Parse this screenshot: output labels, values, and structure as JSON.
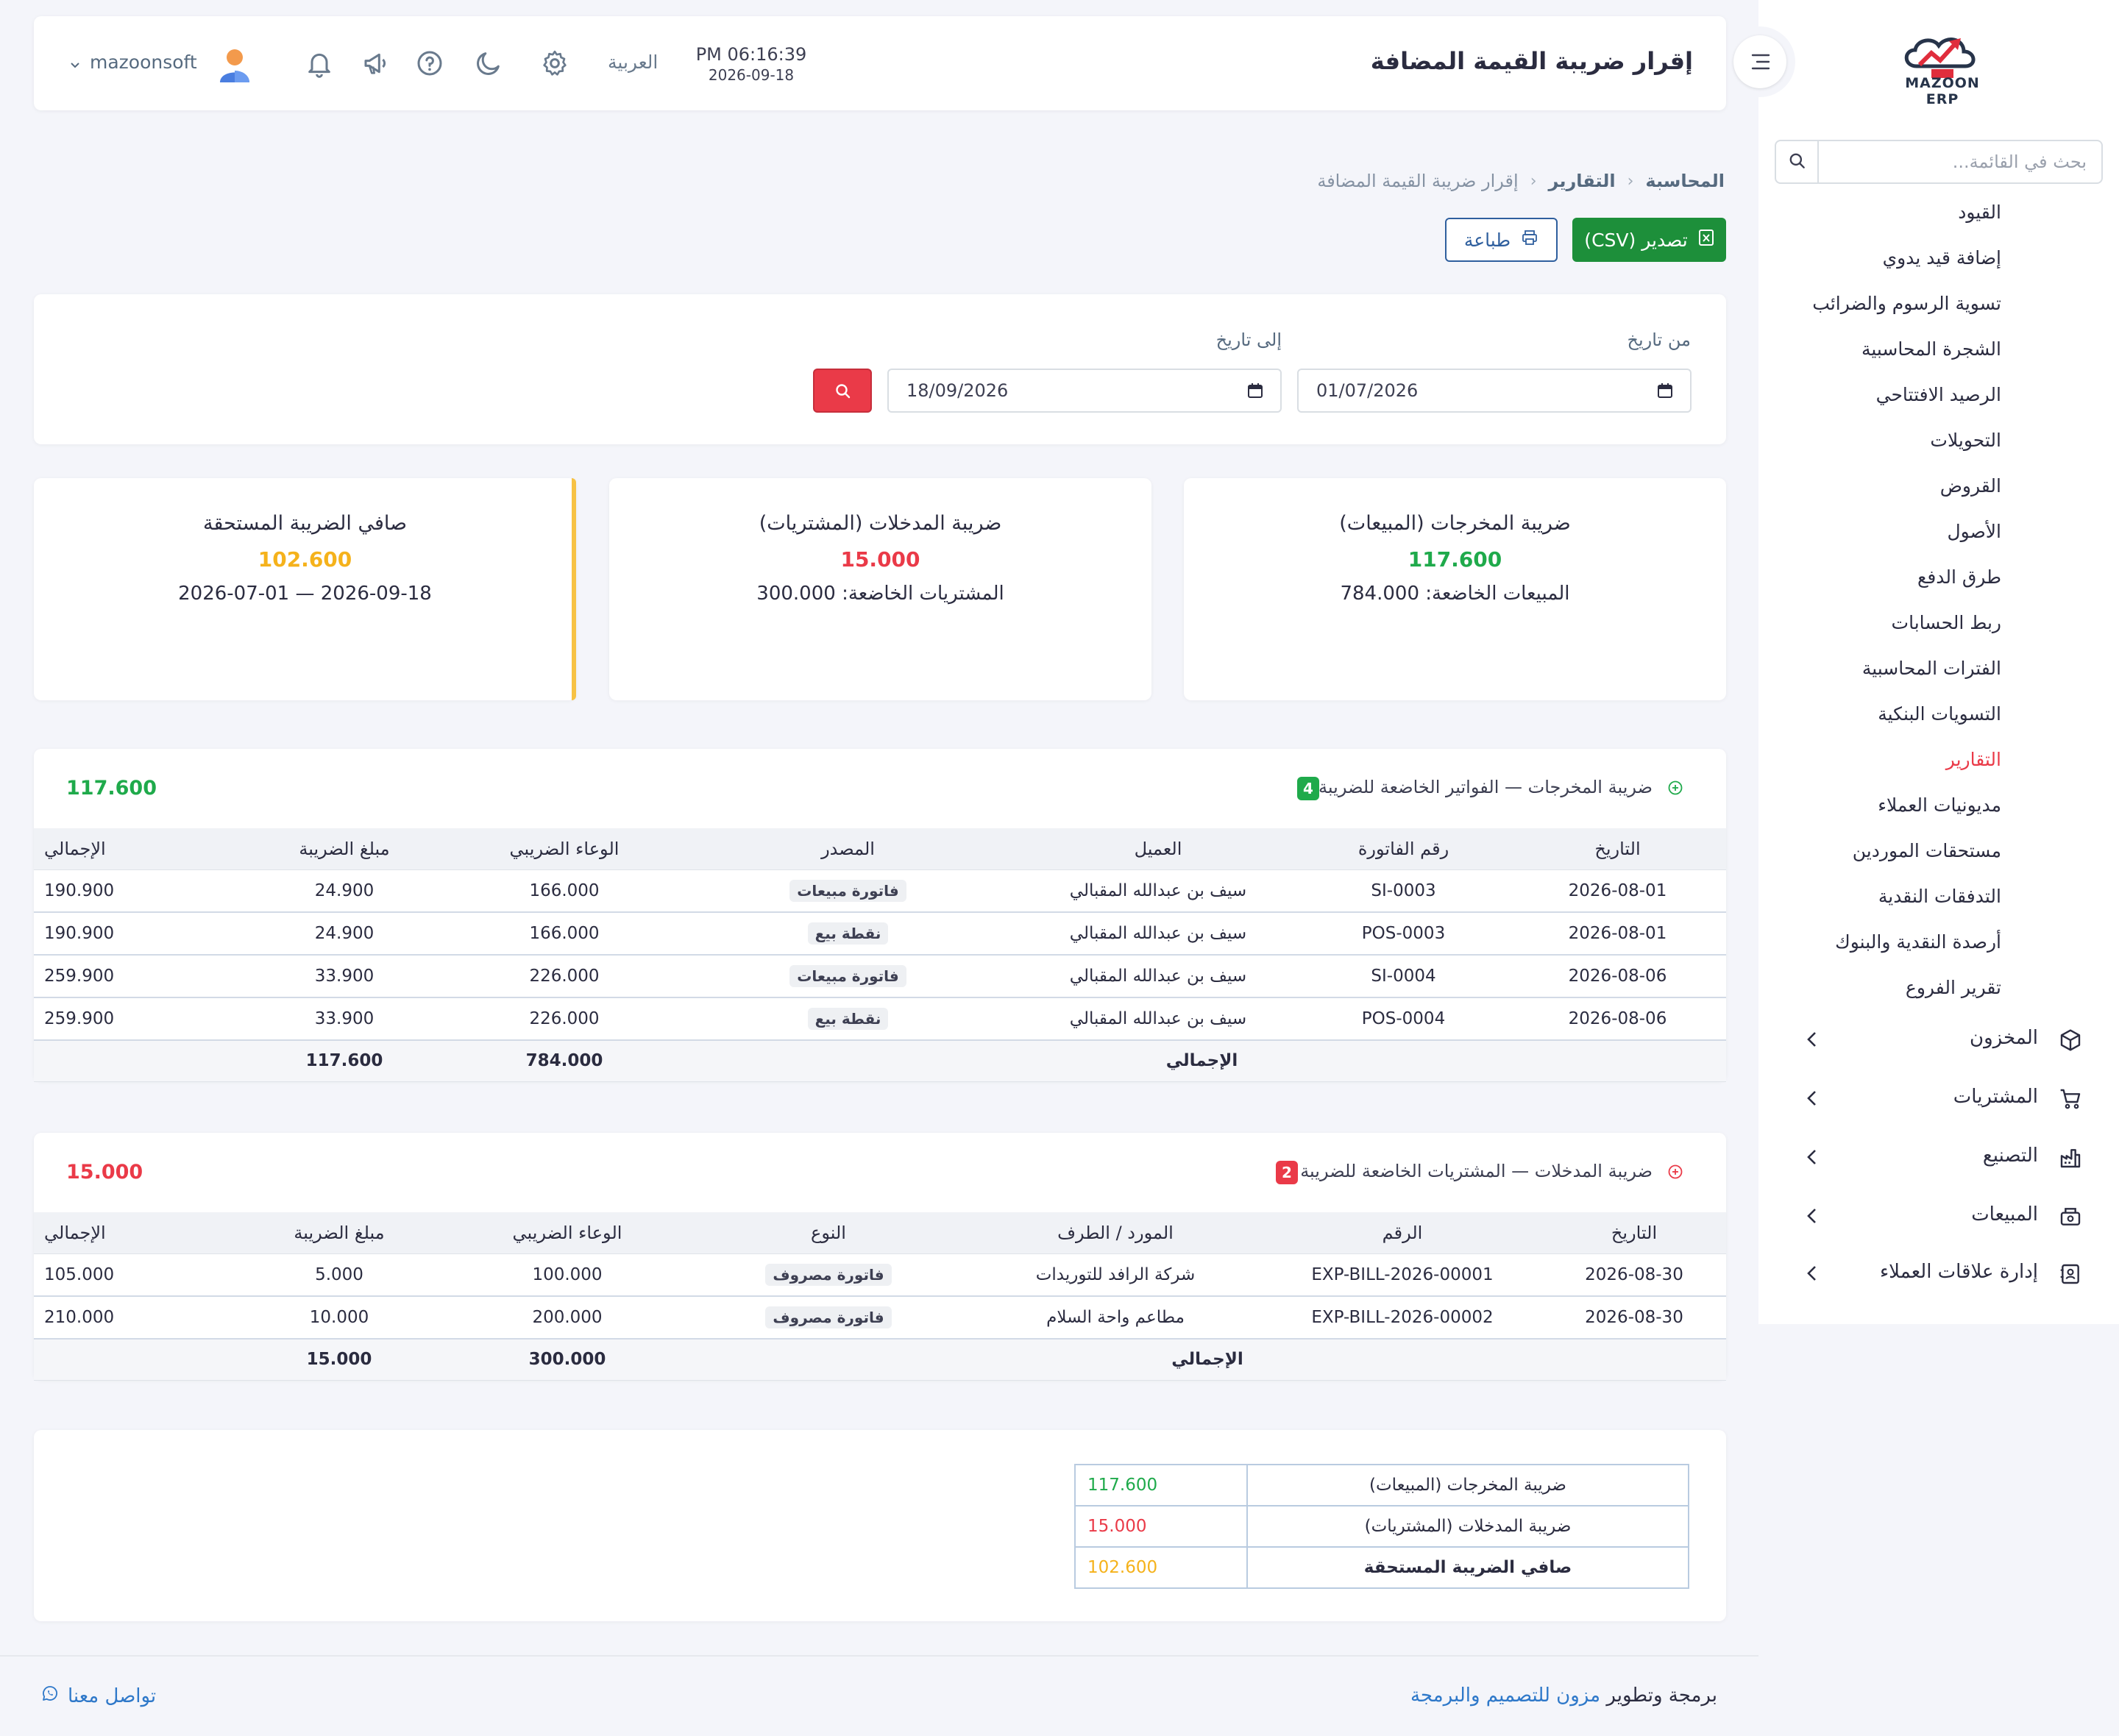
{
  "app": {
    "brand": "MAZOON ERP",
    "logo_tag": "ERP"
  },
  "sidebar": {
    "search_placeholder": "بحث في القائمة...",
    "items": [
      {
        "label": "القيود",
        "active": false
      },
      {
        "label": "إضافة قيد يدوي",
        "active": false
      },
      {
        "label": "تسوية الرسوم والضرائب",
        "active": false
      },
      {
        "label": "الشجرة المحاسبية",
        "active": false
      },
      {
        "label": "الرصيد الافتتاحي",
        "active": false
      },
      {
        "label": "التحويلات",
        "active": false
      },
      {
        "label": "القروض",
        "active": false
      },
      {
        "label": "الأصول",
        "active": false
      },
      {
        "label": "طرق الدفع",
        "active": false
      },
      {
        "label": "ربط الحسابات",
        "active": false
      },
      {
        "label": "الفترات المحاسبية",
        "active": false
      },
      {
        "label": "التسويات البنكية",
        "active": false
      },
      {
        "label": "التقارير",
        "active": true
      },
      {
        "label": "مديونيات العملاء",
        "active": false
      },
      {
        "label": "مستحقات الموردين",
        "active": false
      },
      {
        "label": "التدفقات النقدية",
        "active": false
      },
      {
        "label": "أرصدة النقدية والبنوك",
        "active": false
      },
      {
        "label": "تقرير الفروع",
        "active": false
      }
    ],
    "groups": [
      {
        "label": "المخزون",
        "icon": "box-icon"
      },
      {
        "label": "المشتريات",
        "icon": "cart-icon"
      },
      {
        "label": "التصنيع",
        "icon": "factory-icon"
      },
      {
        "label": "المبيعات",
        "icon": "register-icon"
      },
      {
        "label": "إدارة علاقات العملاء",
        "icon": "contacts-icon"
      }
    ]
  },
  "navbar": {
    "title": "إقرار ضريبة القيمة المضافة",
    "time": "PM 06:16:39",
    "date": "2026-09-18",
    "language": "العربية",
    "username": "mazoonsoft"
  },
  "breadcrumb": {
    "level1": "المحاسبة",
    "level2": "التقارير",
    "current": "إقرار ضريبة القيمة المضافة"
  },
  "actions": {
    "export_label": "تصدير (CSV)",
    "print_label": "طباعة"
  },
  "filter": {
    "from_label": "من تاريخ",
    "from_value": "01/07/2026",
    "to_label": "إلى تاريخ",
    "to_value": "18/09/2026"
  },
  "summary": {
    "output": {
      "title": "ضريبة المخرجات (المبيعات)",
      "value": "117.600",
      "sub": "المبيعات الخاضعة: 784.000"
    },
    "input": {
      "title": "ضريبة المدخلات (المشتريات)",
      "value": "15.000",
      "sub": "المشتريات الخاضعة: 300.000"
    },
    "net": {
      "title": "صافي الضريبة المستحقة",
      "value": "102.600",
      "sub": "2026-07-01 — 2026-09-18"
    }
  },
  "output_table": {
    "title": "ضريبة المخرجات — الفواتير الخاضعة للضريبة",
    "count": "4",
    "total": "117.600",
    "columns": [
      "التاريخ",
      "رقم الفاتورة",
      "العميل",
      "المصدر",
      "الوعاء الضريبي",
      "مبلغ الضريبة",
      "الإجمالي"
    ],
    "rows": [
      {
        "date": "2026-08-01",
        "number": "SI-0003",
        "party": "سيف بن عبدالله المقبالي",
        "source": "فاتورة مبيعات",
        "base": "166.000",
        "tax": "24.900",
        "total": "190.900"
      },
      {
        "date": "2026-08-01",
        "number": "POS-0003",
        "party": "سيف بن عبدالله المقبالي",
        "source": "نقطة بيع",
        "base": "166.000",
        "tax": "24.900",
        "total": "190.900"
      },
      {
        "date": "2026-08-06",
        "number": "SI-0004",
        "party": "سيف بن عبدالله المقبالي",
        "source": "فاتورة مبيعات",
        "base": "226.000",
        "tax": "33.900",
        "total": "259.900"
      },
      {
        "date": "2026-08-06",
        "number": "POS-0004",
        "party": "سيف بن عبدالله المقبالي",
        "source": "نقطة بيع",
        "base": "226.000",
        "tax": "33.900",
        "total": "259.900"
      }
    ],
    "footer": {
      "label": "الإجمالي",
      "base": "784.000",
      "tax": "117.600"
    }
  },
  "input_table": {
    "title": "ضريبة المدخلات — المشتريات الخاضعة للضريبة",
    "count": "2",
    "total": "15.000",
    "columns": [
      "التاريخ",
      "الرقم",
      "المورد / الطرف",
      "النوع",
      "الوعاء الضريبي",
      "مبلغ الضريبة",
      "الإجمالي"
    ],
    "rows": [
      {
        "date": "2026-08-30",
        "number": "EXP-BILL-2026-00001",
        "party": "شركة الرافد للتوريدات",
        "source": "فاتورة مصروف",
        "base": "100.000",
        "tax": "5.000",
        "total": "105.000"
      },
      {
        "date": "2026-08-30",
        "number": "EXP-BILL-2026-00002",
        "party": "مطاعم واحة السلام",
        "source": "فاتورة مصروف",
        "base": "200.000",
        "tax": "10.000",
        "total": "210.000"
      }
    ],
    "footer": {
      "label": "الإجمالي",
      "base": "300.000",
      "tax": "15.000"
    }
  },
  "final_summary": [
    {
      "label": "ضريبة المخرجات (المبيعات)",
      "value": "117.600",
      "tone": "green"
    },
    {
      "label": "ضريبة المدخلات (المشتريات)",
      "value": "15.000",
      "tone": "red"
    },
    {
      "label": "صافي الضريبة المستحقة",
      "value": "102.600",
      "tone": "amber"
    }
  ],
  "footer": {
    "prefix": "برمجة وتطوير",
    "company": "مزون للتصميم والبرمجة",
    "contact": "تواصل معنا"
  },
  "colors": {
    "accent_red": "#ea3a48",
    "green": "#1faa4b",
    "amber": "#f5b21b",
    "export_green": "#1d8f3a",
    "print_blue": "#2f5f9e"
  }
}
